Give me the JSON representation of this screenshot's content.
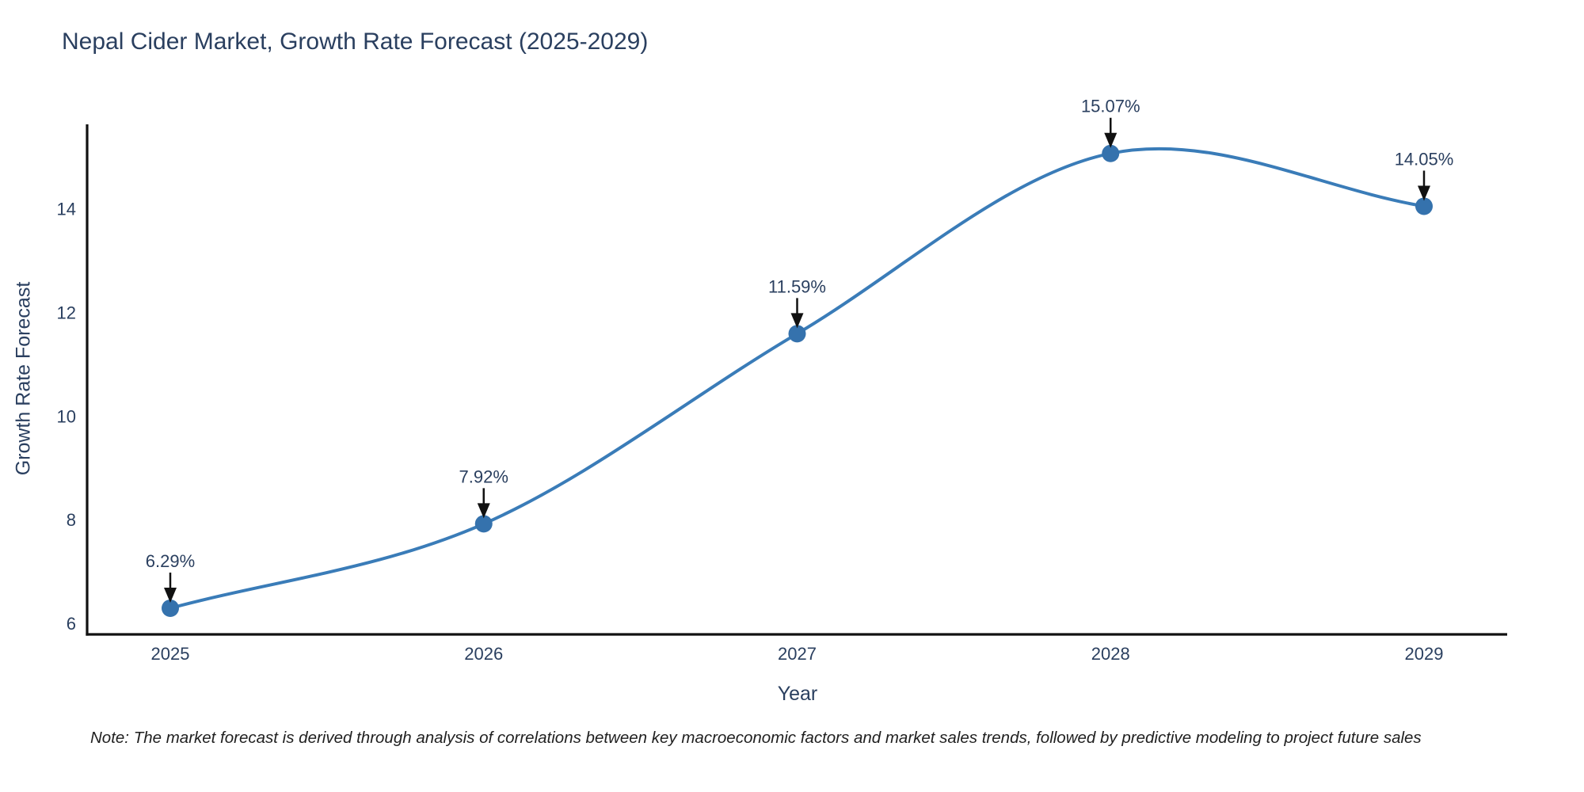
{
  "title": "Nepal Cider Market, Growth Rate Forecast (2025-2029)",
  "footnote": "Note: The market forecast is derived through analysis of correlations between key macroeconomic factors and market sales trends, followed by predictive modeling to project future sales",
  "chart_data": {
    "type": "line",
    "title": "Nepal Cider Market, Growth Rate Forecast (2025-2029)",
    "xlabel": "Year",
    "ylabel": "Growth Rate Forecast",
    "x": [
      2025,
      2026,
      2027,
      2028,
      2029
    ],
    "y": [
      6.29,
      7.92,
      11.59,
      15.07,
      14.05
    ],
    "point_labels": [
      "6.29%",
      "7.92%",
      "11.59%",
      "15.07%",
      "14.05%"
    ],
    "xticks": [
      2025,
      2026,
      2027,
      2028,
      2029
    ],
    "yticks": [
      6,
      8,
      10,
      12,
      14
    ],
    "xlim": [
      2024.73,
      2029.27
    ],
    "ylim": [
      5.8,
      15.63
    ],
    "grid": false,
    "legend": "none",
    "line_shape": "spline",
    "colors": {
      "line": "#3a7cb8",
      "marker": "#3572ad",
      "axis": "#111111",
      "tick_text": "#2a3f5f",
      "annotation_text": "#2a3f5f",
      "annotation_arrow": "#111111",
      "background": "#ffffff"
    }
  }
}
